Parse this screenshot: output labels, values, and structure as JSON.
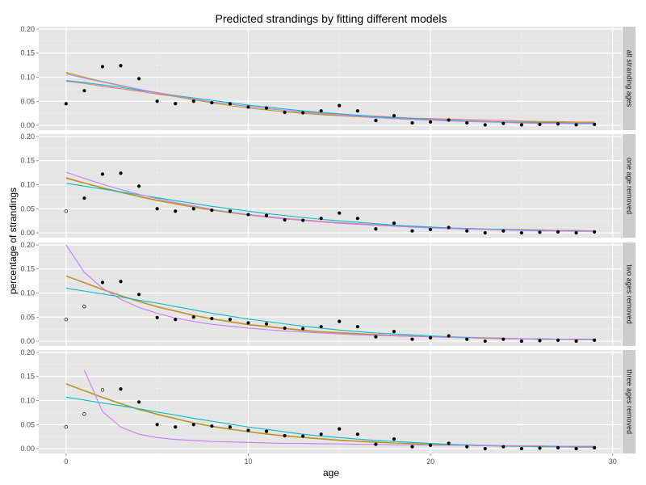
{
  "chart_data": {
    "type": "line",
    "title": "Predicted strandings by fitting different models",
    "xlabel": "age",
    "ylabel": "percentage of strandings",
    "xlim": [
      -1.5,
      30.5
    ],
    "ylim": [
      -0.01,
      0.205
    ],
    "x_ticks": [
      0,
      10,
      20,
      30
    ],
    "y_ticks": [
      0.0,
      0.05,
      0.1,
      0.15,
      0.2
    ],
    "x_tick_labels": [
      "0",
      "10",
      "20",
      "30"
    ],
    "y_tick_labels": [
      "0.00",
      "0.05",
      "0.10",
      "0.15",
      "0.20"
    ],
    "grid": true,
    "legend": "none",
    "series_colors": [
      "#F8766D",
      "#A3A500",
      "#00BFC4",
      "#C77CFF"
    ],
    "point_colors": {
      "used": "#000000",
      "removed": "#000000"
    },
    "panels": [
      {
        "strip": "all stranding ages",
        "points": {
          "x": [
            0,
            1,
            2,
            3,
            4,
            5,
            6,
            7,
            8,
            9,
            10,
            11,
            12,
            13,
            14,
            15,
            16,
            17,
            18,
            19,
            20,
            21,
            22,
            23,
            24,
            25,
            26,
            27,
            28,
            29
          ],
          "y": [
            0.045,
            0.072,
            0.122,
            0.124,
            0.097,
            0.05,
            0.045,
            0.05,
            0.047,
            0.045,
            0.038,
            0.036,
            0.027,
            0.026,
            0.03,
            0.041,
            0.03,
            0.01,
            0.02,
            0.005,
            0.007,
            0.011,
            0.005,
            0.001,
            0.004,
            0.001,
            0.002,
            0.003,
            0.001,
            0.002
          ],
          "removed": []
        },
        "series": [
          {
            "values": [
              0.092,
              0.087,
              0.081,
              0.076,
              0.071,
              0.065,
              0.06,
              0.054,
              0.049,
              0.044,
              0.039,
              0.035,
              0.031,
              0.028,
              0.025,
              0.023,
              0.021,
              0.019,
              0.017,
              0.015,
              0.014,
              0.013,
              0.012,
              0.011,
              0.01,
              0.009,
              0.008,
              0.008,
              0.007,
              0.007
            ]
          },
          {
            "values": [
              0.11,
              0.1,
              0.091,
              0.083,
              0.075,
              0.067,
              0.06,
              0.053,
              0.047,
              0.041,
              0.036,
              0.032,
              0.028,
              0.025,
              0.022,
              0.02,
              0.018,
              0.016,
              0.014,
              0.012,
              0.011,
              0.01,
              0.009,
              0.008,
              0.007,
              0.007,
              0.006,
              0.006,
              0.005,
              0.005
            ]
          },
          {
            "values": [
              0.093,
              0.089,
              0.084,
              0.079,
              0.073,
              0.068,
              0.062,
              0.057,
              0.052,
              0.047,
              0.042,
              0.038,
              0.034,
              0.03,
              0.027,
              0.024,
              0.021,
              0.018,
              0.016,
              0.014,
              0.012,
              0.011,
              0.009,
              0.008,
              0.007,
              0.006,
              0.005,
              0.005,
              0.004,
              0.004
            ]
          },
          {
            "values": [
              0.107,
              0.098,
              0.09,
              0.082,
              0.075,
              0.068,
              0.061,
              0.055,
              0.049,
              0.044,
              0.039,
              0.035,
              0.031,
              0.027,
              0.024,
              0.021,
              0.019,
              0.016,
              0.014,
              0.012,
              0.011,
              0.009,
              0.008,
              0.007,
              0.006,
              0.005,
              0.004,
              0.004,
              0.003,
              0.003
            ]
          }
        ]
      },
      {
        "strip": "one age removed",
        "points": {
          "x": [
            0,
            1,
            2,
            3,
            4,
            5,
            6,
            7,
            8,
            9,
            10,
            11,
            12,
            13,
            14,
            15,
            16,
            17,
            18,
            19,
            20,
            21,
            22,
            23,
            24,
            25,
            26,
            27,
            28,
            29
          ],
          "y": [
            0.045,
            0.072,
            0.122,
            0.124,
            0.097,
            0.05,
            0.045,
            0.05,
            0.047,
            0.045,
            0.038,
            0.036,
            0.027,
            0.026,
            0.03,
            0.041,
            0.03,
            0.008,
            0.02,
            0.004,
            0.007,
            0.011,
            0.004,
            0.0,
            0.004,
            0.0,
            0.001,
            0.002,
            0.0,
            0.002
          ],
          "removed": [
            0
          ]
        },
        "series": [
          {
            "values": [
              0.115,
              0.104,
              0.094,
              0.085,
              0.076,
              0.068,
              0.061,
              0.054,
              0.048,
              0.043,
              0.038,
              0.034,
              0.03,
              0.027,
              0.024,
              0.021,
              0.019,
              0.017,
              0.015,
              0.013,
              0.012,
              0.01,
              0.009,
              0.008,
              0.007,
              0.007,
              0.006,
              0.005,
              0.005,
              0.004
            ]
          },
          {
            "values": [
              0.113,
              0.103,
              0.093,
              0.084,
              0.075,
              0.067,
              0.06,
              0.053,
              0.047,
              0.042,
              0.037,
              0.033,
              0.029,
              0.026,
              0.023,
              0.02,
              0.018,
              0.016,
              0.014,
              0.012,
              0.011,
              0.009,
              0.008,
              0.007,
              0.006,
              0.006,
              0.005,
              0.004,
              0.004,
              0.003
            ]
          },
          {
            "values": [
              0.103,
              0.097,
              0.091,
              0.085,
              0.079,
              0.073,
              0.067,
              0.061,
              0.055,
              0.05,
              0.045,
              0.04,
              0.036,
              0.032,
              0.028,
              0.025,
              0.022,
              0.019,
              0.016,
              0.014,
              0.012,
              0.01,
              0.009,
              0.008,
              0.007,
              0.006,
              0.005,
              0.004,
              0.004,
              0.003
            ]
          },
          {
            "values": [
              0.126,
              0.113,
              0.101,
              0.09,
              0.08,
              0.071,
              0.063,
              0.056,
              0.049,
              0.043,
              0.038,
              0.033,
              0.029,
              0.026,
              0.023,
              0.02,
              0.018,
              0.016,
              0.014,
              0.012,
              0.01,
              0.009,
              0.008,
              0.007,
              0.006,
              0.005,
              0.004,
              0.004,
              0.003,
              0.003
            ]
          }
        ]
      },
      {
        "strip": "two ages removed",
        "points": {
          "x": [
            0,
            1,
            2,
            3,
            4,
            5,
            6,
            7,
            8,
            9,
            10,
            11,
            12,
            13,
            14,
            15,
            16,
            17,
            18,
            19,
            20,
            21,
            22,
            23,
            24,
            25,
            26,
            27,
            28,
            29
          ],
          "y": [
            0.045,
            0.072,
            0.122,
            0.124,
            0.097,
            0.049,
            0.045,
            0.05,
            0.047,
            0.045,
            0.038,
            0.036,
            0.027,
            0.026,
            0.03,
            0.041,
            0.03,
            0.009,
            0.02,
            0.004,
            0.007,
            0.011,
            0.004,
            0.0,
            0.004,
            0.0,
            0.001,
            0.002,
            0.0,
            0.002
          ],
          "removed": [
            0,
            1
          ]
        },
        "series": [
          {
            "values": [
              0.136,
              0.122,
              0.108,
              0.095,
              0.083,
              0.072,
              0.063,
              0.054,
              0.047,
              0.041,
              0.035,
              0.031,
              0.027,
              0.023,
              0.02,
              0.018,
              0.016,
              0.014,
              0.012,
              0.011,
              0.009,
              0.008,
              0.007,
              0.006,
              0.006,
              0.005,
              0.005,
              0.004,
              0.004,
              0.004
            ]
          },
          {
            "values": [
              0.135,
              0.121,
              0.107,
              0.094,
              0.082,
              0.071,
              0.062,
              0.053,
              0.046,
              0.04,
              0.034,
              0.03,
              0.026,
              0.022,
              0.019,
              0.017,
              0.015,
              0.013,
              0.011,
              0.01,
              0.009,
              0.008,
              0.007,
              0.006,
              0.005,
              0.005,
              0.004,
              0.004,
              0.003,
              0.003
            ]
          },
          {
            "values": [
              0.11,
              0.104,
              0.098,
              0.092,
              0.085,
              0.079,
              0.072,
              0.065,
              0.058,
              0.052,
              0.046,
              0.041,
              0.036,
              0.031,
              0.027,
              0.023,
              0.02,
              0.017,
              0.015,
              0.013,
              0.011,
              0.009,
              0.008,
              0.007,
              0.006,
              0.005,
              0.004,
              0.004,
              0.004,
              0.004
            ]
          },
          {
            "values": [
              0.2,
              0.143,
              0.11,
              0.087,
              0.07,
              0.058,
              0.048,
              0.041,
              0.035,
              0.031,
              0.027,
              0.024,
              0.021,
              0.019,
              0.017,
              0.015,
              0.013,
              0.012,
              0.011,
              0.01,
              0.009,
              0.008,
              0.007,
              0.007,
              0.006,
              0.005,
              0.005,
              0.004,
              0.004,
              0.003
            ]
          }
        ]
      },
      {
        "strip": "three ages removed",
        "points": {
          "x": [
            0,
            1,
            2,
            3,
            4,
            5,
            6,
            7,
            8,
            9,
            10,
            11,
            12,
            13,
            14,
            15,
            16,
            17,
            18,
            19,
            20,
            21,
            22,
            23,
            24,
            25,
            26,
            27,
            28,
            29
          ],
          "y": [
            0.045,
            0.072,
            0.122,
            0.124,
            0.097,
            0.05,
            0.045,
            0.05,
            0.047,
            0.045,
            0.038,
            0.036,
            0.027,
            0.026,
            0.03,
            0.041,
            0.03,
            0.009,
            0.02,
            0.004,
            0.007,
            0.011,
            0.004,
            0.0,
            0.004,
            0.0,
            0.001,
            0.002,
            0.0,
            0.002
          ],
          "removed": [
            0,
            1,
            2
          ]
        },
        "series": [
          {
            "values": [
              0.135,
              0.121,
              0.107,
              0.094,
              0.082,
              0.072,
              0.063,
              0.054,
              0.047,
              0.041,
              0.036,
              0.031,
              0.027,
              0.024,
              0.021,
              0.018,
              0.016,
              0.014,
              0.012,
              0.011,
              0.009,
              0.008,
              0.007,
              0.006,
              0.006,
              0.005,
              0.004,
              0.004,
              0.003,
              0.003
            ]
          },
          {
            "values": [
              0.134,
              0.12,
              0.106,
              0.093,
              0.081,
              0.071,
              0.062,
              0.053,
              0.046,
              0.04,
              0.035,
              0.03,
              0.026,
              0.023,
              0.02,
              0.017,
              0.015,
              0.013,
              0.012,
              0.01,
              0.009,
              0.008,
              0.007,
              0.006,
              0.005,
              0.005,
              0.004,
              0.004,
              0.003,
              0.003
            ]
          },
          {
            "values": [
              0.107,
              0.101,
              0.095,
              0.089,
              0.083,
              0.076,
              0.07,
              0.063,
              0.057,
              0.051,
              0.045,
              0.04,
              0.035,
              0.03,
              0.026,
              0.023,
              0.02,
              0.017,
              0.015,
              0.013,
              0.011,
              0.009,
              0.008,
              0.007,
              0.006,
              0.005,
              0.005,
              0.004,
              0.004,
              0.004
            ]
          },
          {
            "x": [
              1,
              2,
              3,
              4,
              5,
              6,
              7,
              8,
              9,
              10,
              11,
              12,
              13,
              14,
              15,
              16,
              17,
              18,
              19,
              20,
              21,
              22,
              23,
              24,
              25,
              26,
              27,
              28,
              29
            ],
            "values": [
              0.163,
              0.077,
              0.045,
              0.03,
              0.023,
              0.019,
              0.017,
              0.015,
              0.014,
              0.013,
              0.012,
              0.011,
              0.011,
              0.01,
              0.01,
              0.009,
              0.009,
              0.008,
              0.008,
              0.007,
              0.007,
              0.007,
              0.006,
              0.006,
              0.006,
              0.006,
              0.005,
              0.005,
              0.005
            ]
          }
        ]
      }
    ]
  }
}
